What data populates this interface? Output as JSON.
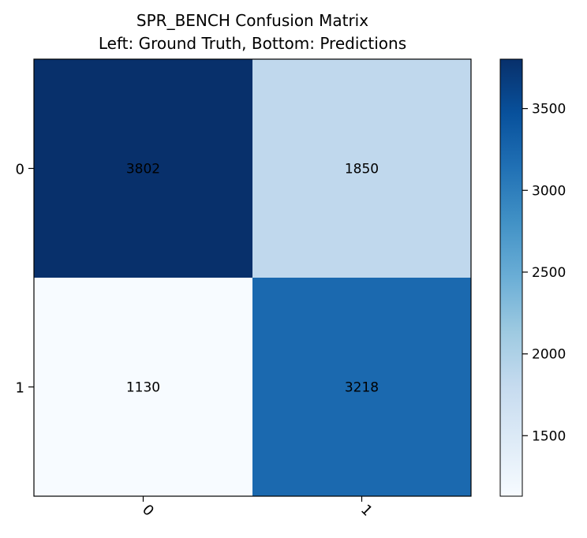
{
  "chart_data": {
    "type": "heatmap",
    "title_lines": [
      "SPR_BENCH Confusion Matrix",
      "Left: Ground Truth, Bottom: Predictions"
    ],
    "row_labels": [
      "0",
      "1"
    ],
    "col_labels": [
      "0",
      "1"
    ],
    "matrix": [
      [
        3802,
        1850
      ],
      [
        1130,
        3218
      ]
    ],
    "colormap": "Blues",
    "color_min": 1130,
    "color_max": 3802,
    "colorbar_ticks": [
      1500,
      2000,
      2500,
      3000,
      3500
    ],
    "cell_text_color": "#000000"
  }
}
